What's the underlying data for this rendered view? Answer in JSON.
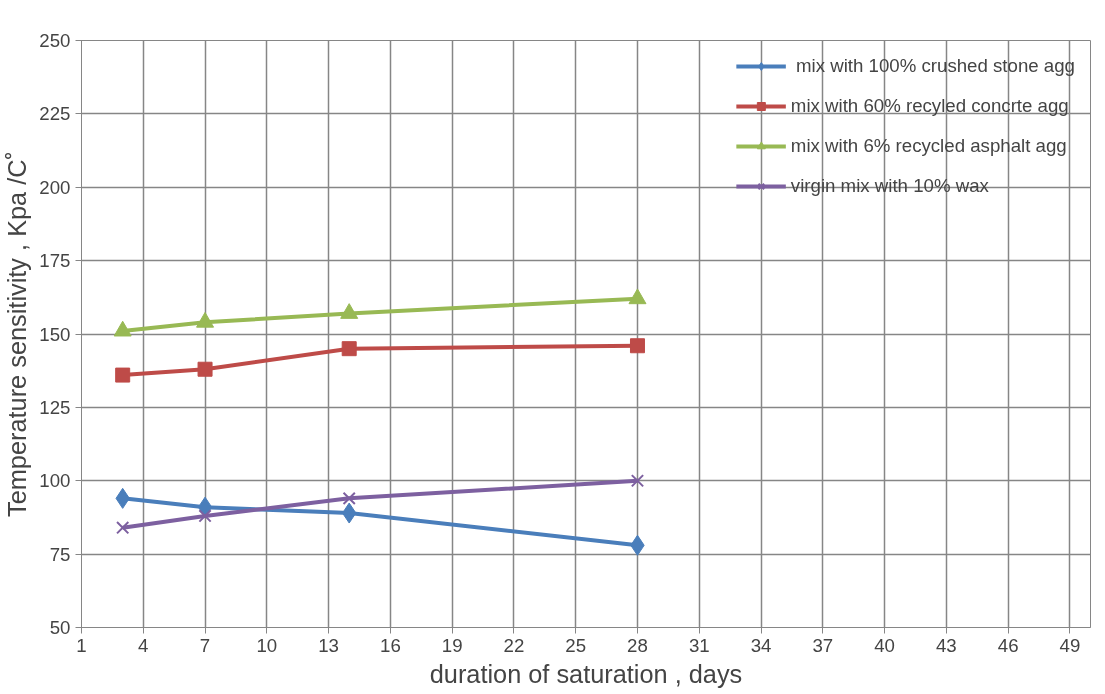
{
  "chart_data": {
    "type": "line",
    "xlabel": "duration of saturation , days",
    "ylabel": "Temperature sensitivity , Kpa /C˚",
    "x": [
      3,
      7,
      14,
      28
    ],
    "series": [
      {
        "name": " mix with 100% crushed stone agg",
        "color": "#4a7ebb",
        "marker": "diamond",
        "values": [
          94,
          91,
          89,
          78
        ]
      },
      {
        "name": "mix with 60% recyled concrte agg",
        "color": "#be4b48",
        "marker": "square",
        "values": [
          136,
          138,
          145,
          146
        ]
      },
      {
        "name": "mix with 6% recycled asphalt agg",
        "color": "#98b954",
        "marker": "triangle",
        "values": [
          151,
          154,
          157,
          162
        ]
      },
      {
        "name": "virgin mix with 10% wax",
        "color": "#7d60a0",
        "marker": "cross",
        "values": [
          84,
          88,
          94,
          100
        ]
      }
    ],
    "xlim": [
      1,
      50
    ],
    "xticks": [
      1,
      4,
      7,
      10,
      13,
      16,
      19,
      22,
      25,
      28,
      31,
      34,
      37,
      40,
      43,
      46,
      49
    ],
    "ylim": [
      50,
      250
    ],
    "yticks": [
      50,
      75,
      100,
      125,
      150,
      175,
      200,
      225,
      250
    ],
    "grid": true,
    "legend": "top right"
  }
}
